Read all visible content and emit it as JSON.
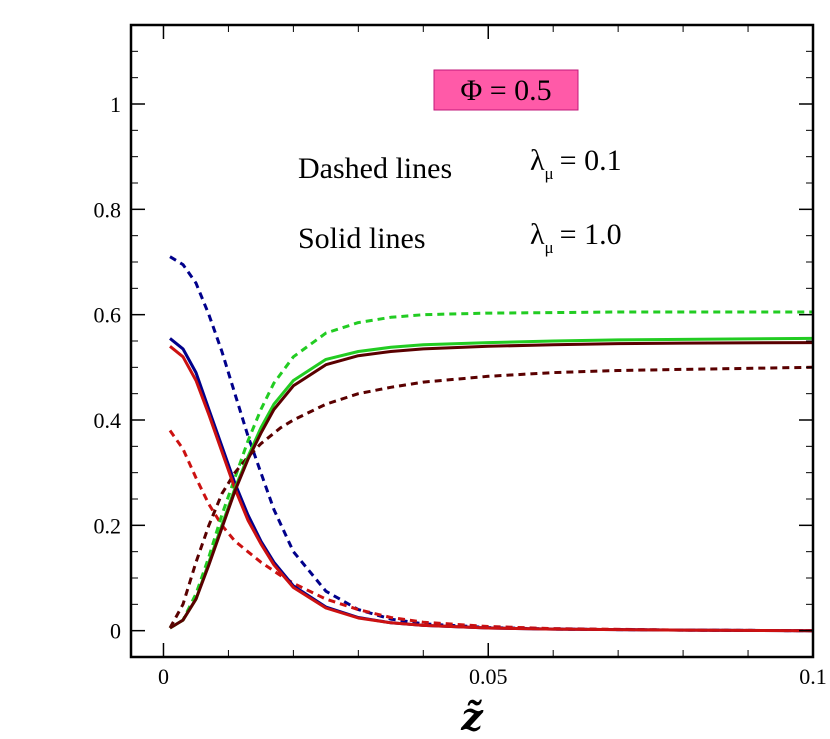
{
  "chart_data": {
    "type": "line",
    "title": "",
    "xlabel": "z̃",
    "ylabel": "",
    "xlim": [
      -0.005,
      0.1
    ],
    "ylim": [
      -0.05,
      1.15
    ],
    "x_ticks": [
      0,
      0.05,
      0.1
    ],
    "x_tick_labels": [
      "0",
      "0.05",
      "0.1"
    ],
    "y_ticks": [
      0,
      0.2,
      0.4,
      0.6,
      0.8,
      1
    ],
    "y_tick_labels": [
      "0",
      "0.2",
      "0.4",
      "0.6",
      "0.8",
      "1"
    ],
    "grid": false,
    "annotations": {
      "phi_box": "Φ = 0.5",
      "phi_box_color": "#ff5aa8",
      "dashed_label": "Dashed lines",
      "solid_label": "Solid lines",
      "lambda_symbol": "λ",
      "lambda_sub": "μ",
      "dashed_value": "= 0.1",
      "solid_value": "= 1.0"
    },
    "series": [
      {
        "name": "blue dashed (λμ = 0.1)",
        "color": "#00008b",
        "dash": true,
        "x": [
          0.001,
          0.003,
          0.005,
          0.007,
          0.009,
          0.011,
          0.013,
          0.015,
          0.017,
          0.02,
          0.025,
          0.03,
          0.035,
          0.04,
          0.05,
          0.06,
          0.08,
          0.1
        ],
        "y": [
          0.71,
          0.695,
          0.66,
          0.6,
          0.53,
          0.45,
          0.37,
          0.3,
          0.23,
          0.15,
          0.075,
          0.04,
          0.022,
          0.013,
          0.006,
          0.003,
          0.001,
          0.0
        ]
      },
      {
        "name": "red dashed (λμ = 0.1)",
        "color": "#cc1111",
        "dash": true,
        "x": [
          0.001,
          0.003,
          0.005,
          0.007,
          0.009,
          0.011,
          0.013,
          0.015,
          0.018,
          0.02,
          0.025,
          0.03,
          0.035,
          0.04,
          0.05,
          0.06,
          0.08,
          0.1
        ],
        "y": [
          0.38,
          0.345,
          0.29,
          0.24,
          0.2,
          0.17,
          0.15,
          0.13,
          0.105,
          0.09,
          0.06,
          0.04,
          0.025,
          0.016,
          0.008,
          0.004,
          0.001,
          0.0
        ]
      },
      {
        "name": "green dashed (λμ = 0.1)",
        "color": "#22cc22",
        "dash": true,
        "x": [
          0.001,
          0.003,
          0.005,
          0.007,
          0.009,
          0.011,
          0.013,
          0.015,
          0.017,
          0.02,
          0.025,
          0.03,
          0.035,
          0.04,
          0.05,
          0.06,
          0.07,
          0.08,
          0.1
        ],
        "y": [
          0.005,
          0.02,
          0.07,
          0.14,
          0.22,
          0.29,
          0.36,
          0.42,
          0.47,
          0.52,
          0.565,
          0.585,
          0.595,
          0.6,
          0.603,
          0.604,
          0.605,
          0.605,
          0.605
        ]
      },
      {
        "name": "maroon dashed (λμ = 0.1)",
        "color": "#5a0000",
        "dash": true,
        "x": [
          0.001,
          0.003,
          0.005,
          0.007,
          0.009,
          0.011,
          0.013,
          0.015,
          0.018,
          0.02,
          0.025,
          0.03,
          0.035,
          0.04,
          0.05,
          0.06,
          0.07,
          0.08,
          0.1
        ],
        "y": [
          0.005,
          0.05,
          0.13,
          0.2,
          0.26,
          0.3,
          0.33,
          0.355,
          0.385,
          0.4,
          0.43,
          0.45,
          0.462,
          0.472,
          0.483,
          0.49,
          0.494,
          0.496,
          0.5
        ]
      },
      {
        "name": "blue solid (λμ = 1.0)",
        "color": "#00008b",
        "dash": false,
        "x": [
          0.001,
          0.003,
          0.005,
          0.007,
          0.009,
          0.011,
          0.013,
          0.015,
          0.017,
          0.02,
          0.025,
          0.03,
          0.035,
          0.04,
          0.05,
          0.06,
          0.08,
          0.1
        ],
        "y": [
          0.555,
          0.535,
          0.49,
          0.42,
          0.35,
          0.28,
          0.22,
          0.17,
          0.13,
          0.085,
          0.045,
          0.025,
          0.015,
          0.01,
          0.005,
          0.003,
          0.001,
          0.0
        ]
      },
      {
        "name": "red solid (λμ = 1.0)",
        "color": "#cc1111",
        "dash": false,
        "x": [
          0.001,
          0.003,
          0.005,
          0.007,
          0.009,
          0.011,
          0.013,
          0.015,
          0.017,
          0.02,
          0.025,
          0.03,
          0.035,
          0.04,
          0.05,
          0.06,
          0.08,
          0.1
        ],
        "y": [
          0.54,
          0.52,
          0.475,
          0.41,
          0.34,
          0.27,
          0.21,
          0.165,
          0.125,
          0.082,
          0.043,
          0.024,
          0.015,
          0.01,
          0.005,
          0.003,
          0.001,
          0.0
        ]
      },
      {
        "name": "green solid (λμ = 1.0)",
        "color": "#22cc22",
        "dash": false,
        "x": [
          0.001,
          0.003,
          0.005,
          0.007,
          0.009,
          0.011,
          0.013,
          0.015,
          0.017,
          0.02,
          0.025,
          0.03,
          0.035,
          0.04,
          0.05,
          0.06,
          0.07,
          0.08,
          0.1
        ],
        "y": [
          0.005,
          0.02,
          0.06,
          0.13,
          0.2,
          0.27,
          0.33,
          0.385,
          0.43,
          0.475,
          0.515,
          0.53,
          0.538,
          0.543,
          0.547,
          0.55,
          0.552,
          0.553,
          0.555
        ]
      },
      {
        "name": "maroon solid (λμ = 1.0)",
        "color": "#5a0000",
        "dash": false,
        "x": [
          0.001,
          0.003,
          0.005,
          0.007,
          0.009,
          0.011,
          0.013,
          0.015,
          0.017,
          0.02,
          0.025,
          0.03,
          0.035,
          0.04,
          0.05,
          0.06,
          0.07,
          0.08,
          0.1
        ],
        "y": [
          0.005,
          0.02,
          0.06,
          0.125,
          0.195,
          0.265,
          0.325,
          0.375,
          0.42,
          0.465,
          0.505,
          0.522,
          0.53,
          0.535,
          0.54,
          0.543,
          0.545,
          0.546,
          0.547
        ]
      }
    ]
  }
}
